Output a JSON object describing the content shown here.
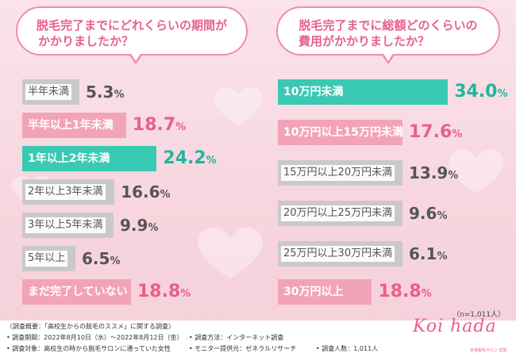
{
  "colors": {
    "gray": "#c9c9c9",
    "pink": "#f2a3b9",
    "teal": "#3ac9b2",
    "accent": "#e8608a"
  },
  "chart_data": [
    {
      "type": "bar",
      "title": "脱毛完了までにどれくらいの期間がかかりましたか？",
      "categories": [
        "半年未満",
        "半年以上1年未満",
        "1年以上2年未満",
        "2年以上3年未満",
        "3年以上5年未満",
        "5年以上",
        "まだ完了していない"
      ],
      "values": [
        5.3,
        18.7,
        24.2,
        16.6,
        9.9,
        6.5,
        18.8
      ],
      "value_labels": [
        "5.3",
        "18.7",
        "24.2",
        "16.6",
        "9.9",
        "6.5",
        "18.8"
      ],
      "styles": [
        "gray",
        "pink",
        "teal",
        "gray",
        "gray",
        "gray",
        "pink"
      ],
      "unit": "%"
    },
    {
      "type": "bar",
      "title": "脱毛完了までに総額どのくらいの費用がかかりましたか？",
      "categories": [
        "10万円未満",
        "10万円以上15万円未満",
        "15万円以上20万円未満",
        "20万円以上25万円未満",
        "25万円以上30万円未満",
        "30万円以上"
      ],
      "values": [
        34.0,
        17.6,
        13.9,
        9.6,
        6.1,
        18.8
      ],
      "value_labels": [
        "34.0",
        "17.6",
        "13.9",
        "9.6",
        "6.1",
        "18.8"
      ],
      "styles": [
        "teal",
        "pink",
        "gray",
        "gray",
        "gray",
        "pink"
      ],
      "unit": "%"
    }
  ],
  "bubbles": {
    "left": {
      "line1": "脱毛完了までにどれくらいの期間が",
      "line2": "かかりましたか？"
    },
    "right": {
      "line1": "脱毛完了までに総額どのくらいの",
      "line2": "費用がかかりましたか？"
    }
  },
  "n_note": "（n=1,011人）",
  "footer": {
    "overview": "〈調査概要：「高校生からの脱毛のススメ」に関する調査〉",
    "period": "• 調査期間：2022年8月10日（水）〜2022年8月12日（金）",
    "target": "• 調査対象：高校生の時から脱毛サロンに通っていた女性",
    "method": "• 調査方法：インターネット調査",
    "provider": "• モニター提供元：ゼネラルリサーチ",
    "count": "• 調査人数：1,011人"
  },
  "logo": {
    "text": "Koi hada",
    "sub": "全身脱毛サロン 恋肌"
  }
}
